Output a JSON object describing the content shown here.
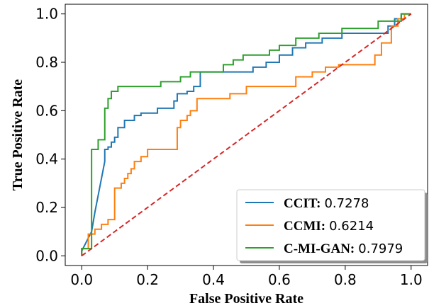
{
  "chart_data": {
    "type": "line",
    "title": "",
    "xlabel": "False Positive Rate",
    "ylabel": "True Positive Rate",
    "xlim": [
      -0.05,
      1.05
    ],
    "ylim": [
      -0.04,
      1.04
    ],
    "xticks": [
      0.0,
      0.2,
      0.4,
      0.6,
      0.8,
      1.0
    ],
    "yticks": [
      0.0,
      0.2,
      0.4,
      0.6,
      0.8,
      1.0
    ],
    "xtick_labels": [
      "0.0",
      "0.2",
      "0.4",
      "0.6",
      "0.8",
      "1.0"
    ],
    "ytick_labels": [
      "0.0",
      "0.2",
      "0.4",
      "0.6",
      "0.8",
      "1.0"
    ],
    "grid": false,
    "legend_position": "lower-right",
    "series": [
      {
        "name": "CCIT:",
        "score": "0.7278",
        "color": "#1f77b4",
        "style": "step",
        "points": [
          [
            0.0,
            0.0
          ],
          [
            0.0,
            0.02
          ],
          [
            0.03,
            0.1
          ],
          [
            0.04,
            0.18
          ],
          [
            0.05,
            0.25
          ],
          [
            0.06,
            0.32
          ],
          [
            0.07,
            0.39
          ],
          [
            0.07,
            0.44
          ],
          [
            0.08,
            0.44
          ],
          [
            0.08,
            0.45
          ],
          [
            0.09,
            0.45
          ],
          [
            0.09,
            0.47
          ],
          [
            0.1,
            0.47
          ],
          [
            0.1,
            0.49
          ],
          [
            0.11,
            0.49
          ],
          [
            0.11,
            0.53
          ],
          [
            0.13,
            0.53
          ],
          [
            0.13,
            0.56
          ],
          [
            0.16,
            0.56
          ],
          [
            0.16,
            0.58
          ],
          [
            0.18,
            0.58
          ],
          [
            0.18,
            0.59
          ],
          [
            0.23,
            0.59
          ],
          [
            0.23,
            0.61
          ],
          [
            0.28,
            0.61
          ],
          [
            0.28,
            0.64
          ],
          [
            0.29,
            0.64
          ],
          [
            0.29,
            0.67
          ],
          [
            0.32,
            0.67
          ],
          [
            0.32,
            0.68
          ],
          [
            0.34,
            0.68
          ],
          [
            0.34,
            0.7
          ],
          [
            0.36,
            0.7
          ],
          [
            0.36,
            0.76
          ],
          [
            0.52,
            0.76
          ],
          [
            0.52,
            0.78
          ],
          [
            0.56,
            0.78
          ],
          [
            0.56,
            0.8
          ],
          [
            0.6,
            0.8
          ],
          [
            0.6,
            0.83
          ],
          [
            0.64,
            0.83
          ],
          [
            0.64,
            0.86
          ],
          [
            0.68,
            0.86
          ],
          [
            0.68,
            0.88
          ],
          [
            0.73,
            0.88
          ],
          [
            0.73,
            0.9
          ],
          [
            0.79,
            0.9
          ],
          [
            0.79,
            0.92
          ],
          [
            0.93,
            0.92
          ],
          [
            0.93,
            0.95
          ],
          [
            0.95,
            0.95
          ],
          [
            0.95,
            0.98
          ],
          [
            0.97,
            0.98
          ],
          [
            0.97,
            1.0
          ],
          [
            1.0,
            1.0
          ]
        ]
      },
      {
        "name": "CCMI:",
        "score": "0.6214",
        "color": "#ff7f0e",
        "style": "step",
        "points": [
          [
            0.0,
            0.0
          ],
          [
            0.0,
            0.03
          ],
          [
            0.02,
            0.03
          ],
          [
            0.02,
            0.09
          ],
          [
            0.04,
            0.09
          ],
          [
            0.04,
            0.11
          ],
          [
            0.06,
            0.11
          ],
          [
            0.06,
            0.13
          ],
          [
            0.08,
            0.13
          ],
          [
            0.08,
            0.15
          ],
          [
            0.1,
            0.15
          ],
          [
            0.1,
            0.28
          ],
          [
            0.12,
            0.28
          ],
          [
            0.12,
            0.3
          ],
          [
            0.13,
            0.3
          ],
          [
            0.13,
            0.32
          ],
          [
            0.14,
            0.32
          ],
          [
            0.14,
            0.34
          ],
          [
            0.15,
            0.34
          ],
          [
            0.15,
            0.36
          ],
          [
            0.16,
            0.36
          ],
          [
            0.16,
            0.39
          ],
          [
            0.18,
            0.39
          ],
          [
            0.18,
            0.41
          ],
          [
            0.2,
            0.41
          ],
          [
            0.2,
            0.44
          ],
          [
            0.29,
            0.44
          ],
          [
            0.29,
            0.53
          ],
          [
            0.3,
            0.53
          ],
          [
            0.3,
            0.56
          ],
          [
            0.32,
            0.56
          ],
          [
            0.32,
            0.58
          ],
          [
            0.33,
            0.58
          ],
          [
            0.33,
            0.6
          ],
          [
            0.35,
            0.6
          ],
          [
            0.35,
            0.65
          ],
          [
            0.45,
            0.65
          ],
          [
            0.45,
            0.67
          ],
          [
            0.5,
            0.67
          ],
          [
            0.5,
            0.7
          ],
          [
            0.65,
            0.7
          ],
          [
            0.65,
            0.74
          ],
          [
            0.7,
            0.74
          ],
          [
            0.7,
            0.76
          ],
          [
            0.74,
            0.76
          ],
          [
            0.74,
            0.78
          ],
          [
            0.78,
            0.78
          ],
          [
            0.78,
            0.79
          ],
          [
            0.89,
            0.79
          ],
          [
            0.89,
            0.83
          ],
          [
            0.91,
            0.83
          ],
          [
            0.91,
            0.88
          ],
          [
            0.94,
            0.88
          ],
          [
            0.94,
            0.95
          ],
          [
            0.96,
            0.95
          ],
          [
            0.96,
            0.98
          ],
          [
            0.98,
            0.98
          ],
          [
            0.98,
            1.0
          ],
          [
            1.0,
            1.0
          ]
        ]
      },
      {
        "name": "C-MI-GAN:",
        "score": "0.7979",
        "color": "#2ca02c",
        "style": "step",
        "points": [
          [
            0.0,
            0.0
          ],
          [
            0.0,
            0.03
          ],
          [
            0.03,
            0.03
          ],
          [
            0.03,
            0.44
          ],
          [
            0.05,
            0.44
          ],
          [
            0.05,
            0.48
          ],
          [
            0.07,
            0.48
          ],
          [
            0.07,
            0.61
          ],
          [
            0.08,
            0.61
          ],
          [
            0.08,
            0.65
          ],
          [
            0.09,
            0.65
          ],
          [
            0.09,
            0.68
          ],
          [
            0.11,
            0.68
          ],
          [
            0.11,
            0.7
          ],
          [
            0.24,
            0.7
          ],
          [
            0.24,
            0.72
          ],
          [
            0.3,
            0.72
          ],
          [
            0.3,
            0.74
          ],
          [
            0.33,
            0.74
          ],
          [
            0.33,
            0.76
          ],
          [
            0.43,
            0.76
          ],
          [
            0.43,
            0.79
          ],
          [
            0.46,
            0.79
          ],
          [
            0.46,
            0.81
          ],
          [
            0.49,
            0.81
          ],
          [
            0.49,
            0.83
          ],
          [
            0.57,
            0.83
          ],
          [
            0.57,
            0.85
          ],
          [
            0.6,
            0.85
          ],
          [
            0.6,
            0.87
          ],
          [
            0.65,
            0.87
          ],
          [
            0.65,
            0.9
          ],
          [
            0.72,
            0.9
          ],
          [
            0.72,
            0.92
          ],
          [
            0.79,
            0.92
          ],
          [
            0.79,
            0.94
          ],
          [
            0.9,
            0.94
          ],
          [
            0.9,
            0.97
          ],
          [
            0.97,
            0.97
          ],
          [
            0.97,
            1.0
          ],
          [
            1.0,
            1.0
          ]
        ]
      },
      {
        "color": "#d62728",
        "style": "dashed",
        "points": [
          [
            0.0,
            0.0
          ],
          [
            1.0,
            1.0
          ]
        ]
      }
    ]
  }
}
